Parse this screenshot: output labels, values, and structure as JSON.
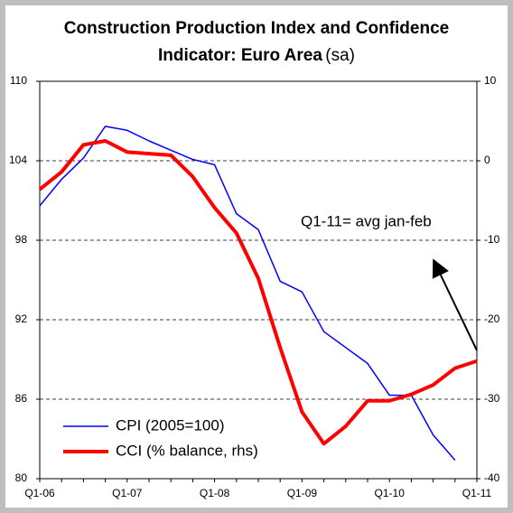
{
  "chart_data": {
    "type": "line",
    "title_line1": "Construction Production Index and Confidence",
    "title_line2": "Indicator: Euro Area",
    "title_note": "(sa)",
    "annotation": "Q1-11= avg jan-feb",
    "categories": [
      "Q1-06",
      null,
      null,
      null,
      "Q1-07",
      null,
      null,
      null,
      "Q1-08",
      null,
      null,
      null,
      "Q1-09",
      null,
      null,
      null,
      "Q1-10",
      null,
      null,
      null,
      "Q1-11"
    ],
    "series": [
      {
        "name": "CPI (2005=100)",
        "color": "#0000ff",
        "width": 1.5,
        "axis": "y",
        "values": [
          100.6,
          102.6,
          104.2,
          106.6,
          106.3,
          105.5,
          104.8,
          104.1,
          103.7,
          100.0,
          98.8,
          94.9,
          94.1,
          91.1,
          89.9,
          88.7,
          86.3,
          86.3,
          83.3,
          81.4,
          null
        ]
      },
      {
        "name": "CCI (% balance, rhs)",
        "color": "#ff0000",
        "width": 4,
        "axis": "y2",
        "values": [
          -3.6,
          -1.4,
          2.0,
          2.5,
          1.1,
          0.9,
          0.7,
          -2.0,
          -5.9,
          -9.1,
          -14.8,
          -23.5,
          -31.6,
          -35.6,
          -33.4,
          -30.2,
          -30.2,
          -29.4,
          -28.2,
          -26.1,
          -25.2
        ]
      }
    ],
    "ylim": [
      80,
      110
    ],
    "yticks": [
      80,
      86,
      92,
      98,
      104,
      110
    ],
    "y2lim": [
      -40,
      10
    ],
    "y2ticks": [
      -40,
      -30,
      -20,
      -10,
      0,
      10
    ],
    "grid": true,
    "legend": "lower left"
  }
}
